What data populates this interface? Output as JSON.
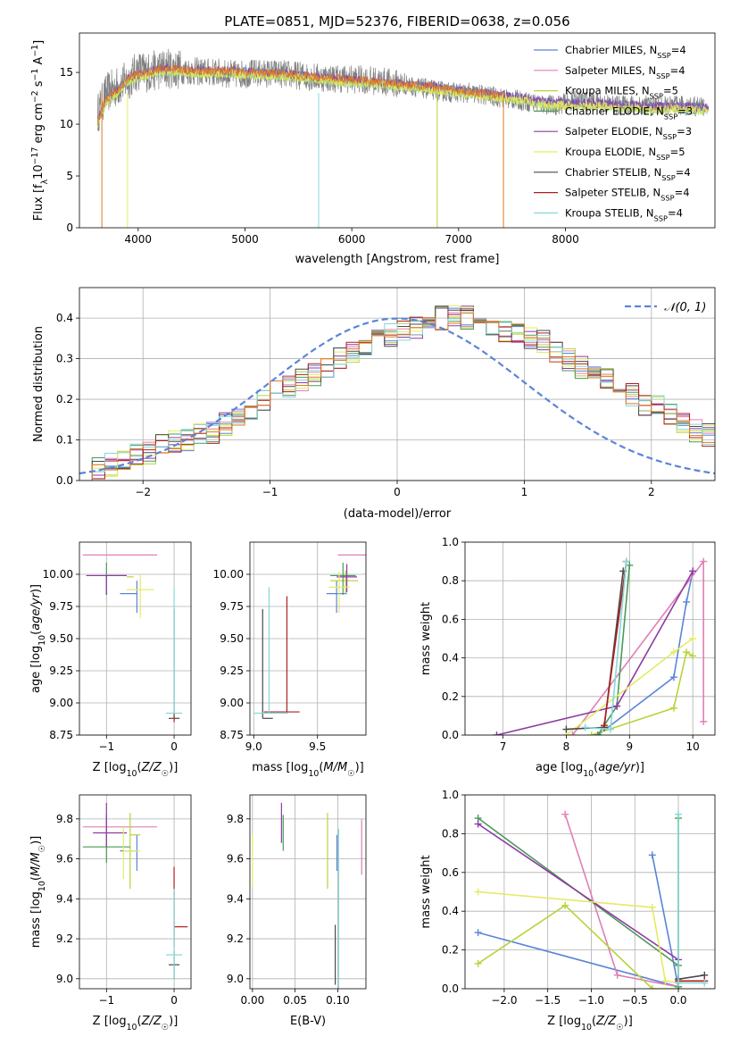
{
  "figure": {
    "title": "PLATE=0851, MJD=52376, FIBERID=0638, z=0.056"
  },
  "colors": {
    "Chabrier MILES": "#5b84d8",
    "Salpeter MILES": "#e07fb7",
    "Kroupa MILES": "#b5d43a",
    "Chabrier ELODIE": "#4a9a58",
    "Salpeter ELODIE": "#8e3aa3",
    "Kroupa ELODIE": "#e4ea66",
    "Chabrier STELIB": "#4a4a4a",
    "Salpeter STELIB": "#b01e1e",
    "Kroupa STELIB": "#86d8d8",
    "orange": "#de7a26",
    "data": "#808080"
  },
  "chart_data": [
    {
      "panel": "spectrum",
      "type": "line",
      "xlabel": "wavelength [Angstrom, rest frame]",
      "ylabel": "Flux [fλ10⁻¹⁷ erg cm⁻² s⁻¹ A⁻¹]",
      "xlim": [
        3450,
        9400
      ],
      "ylim": [
        0,
        18.8
      ],
      "xticks": [
        4000,
        5000,
        6000,
        7000,
        8000
      ],
      "yticks": [
        0,
        5,
        10,
        15
      ],
      "legend_position": "top-right",
      "legend": [
        "Chabrier MILES, N_SSP=4",
        "Salpeter MILES, N_SSP=4",
        "Kroupa MILES, N_SSP=5",
        "Chabrier ELODIE, N_SSP=3",
        "Salpeter ELODIE, N_SSP=3",
        "Kroupa ELODIE, N_SSP=5",
        "Chabrier STELIB, N_SSP=4",
        "Salpeter STELIB, N_SSP=4",
        "Kroupa STELIB, N_SSP=4"
      ],
      "data_outline": {
        "x": [
          3620,
          3700,
          3800,
          3900,
          4000,
          4100,
          4200,
          4300,
          4500,
          4700,
          4900,
          5100,
          5300,
          5500,
          5700,
          5900,
          6100,
          6300,
          6500,
          6700,
          6900,
          7100,
          7300,
          7500,
          7700,
          7900,
          8100,
          8300,
          8500,
          8700,
          8900,
          9100,
          9300
        ],
        "y": [
          11.0,
          13.0,
          13.6,
          14.2,
          15.2,
          15.0,
          15.3,
          15.4,
          15.1,
          15.0,
          14.8,
          14.9,
          14.9,
          14.7,
          14.5,
          14.4,
          14.3,
          14.1,
          13.8,
          13.4,
          13.1,
          13.0,
          12.7,
          12.4,
          12.1,
          11.8,
          12.3,
          12.1,
          11.8,
          11.9,
          11.7,
          11.8,
          11.7
        ]
      },
      "models_continuum": {
        "x": [
          3620,
          3700,
          3800,
          3900,
          4000,
          4100,
          4200,
          4400,
          4600,
          4800,
          5000,
          5200,
          5400,
          5600,
          5800,
          6000,
          6200,
          6400,
          6600,
          6800,
          7000,
          7200,
          7400,
          7600,
          7800,
          8000,
          8200,
          8400,
          8600,
          8800,
          9000,
          9200,
          9340
        ],
        "y": [
          10.2,
          12.3,
          13.0,
          14.2,
          14.6,
          14.9,
          15.2,
          15.1,
          15.0,
          15.0,
          14.9,
          14.8,
          14.7,
          14.5,
          14.3,
          14.1,
          14.0,
          13.8,
          13.6,
          13.4,
          13.1,
          12.9,
          12.6,
          12.4,
          12.0,
          11.9,
          11.9,
          11.8,
          11.7,
          11.5,
          11.6,
          11.5,
          11.4
        ]
      }
    },
    {
      "panel": "residuals",
      "type": "line",
      "xlabel": "(data-model)/error",
      "ylabel": "Normed distribution",
      "xlim": [
        -2.5,
        2.5
      ],
      "ylim": [
        0,
        0.475
      ],
      "xticks": [
        -2,
        -1,
        0,
        1,
        2
      ],
      "yticks": [
        0.0,
        0.1,
        0.2,
        0.3,
        0.4
      ],
      "legend": [
        "𝒩(0, 1)"
      ],
      "legend_position": "top-right",
      "reference_curve": "gaussian mean 0 sigma 1",
      "bin_width": 0.1,
      "bin_start": -2.5,
      "histogram_approx": [
        0.025,
        0.03,
        0.04,
        0.05,
        0.06,
        0.07,
        0.085,
        0.1,
        0.1,
        0.11,
        0.12,
        0.14,
        0.16,
        0.18,
        0.2,
        0.22,
        0.23,
        0.25,
        0.26,
        0.28,
        0.3,
        0.32,
        0.33,
        0.35,
        0.36,
        0.37,
        0.38,
        0.39,
        0.4,
        0.41,
        0.4,
        0.39,
        0.38,
        0.37,
        0.36,
        0.35,
        0.34,
        0.32,
        0.3,
        0.28,
        0.27,
        0.25,
        0.23,
        0.21,
        0.19,
        0.18,
        0.16,
        0.14,
        0.12,
        0.11
      ]
    },
    {
      "panel": "age_vs_Z",
      "type": "scatter",
      "xlabel": "Z [log10(Z/Z☉)]",
      "ylabel": "age  [log10(age/yr)]",
      "xlim": [
        -1.4,
        0.25
      ],
      "ylim": [
        8.75,
        10.25
      ],
      "xticks": [
        -1,
        0
      ],
      "yticks": [
        8.75,
        9.0,
        9.25,
        9.5,
        9.75,
        10.0
      ],
      "points": [
        {
          "model": "Chabrier MILES",
          "x": -0.55,
          "y": 9.85,
          "xerr": [
            0.25,
            0.0
          ],
          "yerr": [
            0.15,
            0.1
          ]
        },
        {
          "model": "Salpeter MILES",
          "x": -0.8,
          "y": 10.15,
          "xerr": [
            0.55,
            0.55
          ],
          "yerr": [
            0.0,
            0.0
          ]
        },
        {
          "model": "Kroupa MILES",
          "x": -0.7,
          "y": 9.98,
          "xerr": [
            0.0,
            0.1
          ],
          "yerr": [
            0.0,
            0.0
          ]
        },
        {
          "model": "Chabrier ELODIE",
          "x": -1.0,
          "y": 9.99,
          "xerr": [
            0.0,
            0.3
          ],
          "yerr": [
            0.15,
            0.1
          ]
        },
        {
          "model": "Salpeter ELODIE",
          "x": -1.0,
          "y": 9.99,
          "xerr": [
            0.3,
            0.3
          ],
          "yerr": [
            0.15,
            0.0
          ]
        },
        {
          "model": "Kroupa ELODIE",
          "x": -0.5,
          "y": 9.88,
          "xerr": [
            0.2,
            0.2
          ],
          "yerr": [
            0.22,
            0.12
          ]
        },
        {
          "model": "Chabrier STELIB",
          "x": 0.0,
          "y": 8.88,
          "xerr": [
            0.08,
            0.08
          ],
          "yerr": [
            0.0,
            0.85
          ]
        },
        {
          "model": "Salpeter STELIB",
          "x": 0.0,
          "y": 8.9,
          "xerr": [
            0.0,
            0.0
          ],
          "yerr": [
            0.05,
            0.0
          ]
        },
        {
          "model": "Kroupa STELIB",
          "x": 0.0,
          "y": 8.92,
          "xerr": [
            0.12,
            0.12
          ],
          "yerr": [
            0.0,
            0.98
          ]
        }
      ]
    },
    {
      "panel": "age_vs_mass",
      "type": "scatter",
      "xlabel": "mass [log10(M/M☉)]",
      "ylabel": "",
      "xlim": [
        8.97,
        9.88
      ],
      "ylim": [
        8.75,
        10.25
      ],
      "xticks": [
        9.0,
        9.5
      ],
      "yticks": [
        8.75,
        9.0,
        9.25,
        9.5,
        9.75,
        10.0
      ],
      "points": [
        {
          "model": "Chabrier MILES",
          "x": 9.65,
          "y": 9.85,
          "xerr": [
            0.08,
            0.08
          ],
          "yerr": [
            0.15,
            0.1
          ]
        },
        {
          "model": "Salpeter MILES",
          "x": 9.78,
          "y": 10.15,
          "xerr": [
            0.12,
            0.12
          ],
          "yerr": [
            0.0,
            0.0
          ]
        },
        {
          "model": "Kroupa MILES",
          "x": 9.72,
          "y": 9.95,
          "xerr": [
            0.12,
            0.1
          ],
          "yerr": [
            0.1,
            0.08
          ]
        },
        {
          "model": "Chabrier ELODIE",
          "x": 9.7,
          "y": 9.99,
          "xerr": [
            0.1,
            0.1
          ],
          "yerr": [
            0.15,
            0.1
          ]
        },
        {
          "model": "Salpeter ELODIE",
          "x": 9.73,
          "y": 9.98,
          "xerr": [
            0.08,
            0.08
          ],
          "yerr": [
            0.12,
            0.1
          ]
        },
        {
          "model": "Kroupa ELODIE",
          "x": 9.67,
          "y": 9.9,
          "xerr": [
            0.08,
            0.08
          ],
          "yerr": [
            0.2,
            0.12
          ]
        },
        {
          "model": "Chabrier STELIB",
          "x": 9.07,
          "y": 8.88,
          "xerr": [
            0.0,
            0.08
          ],
          "yerr": [
            0.0,
            0.85
          ]
        },
        {
          "model": "Salpeter STELIB",
          "x": 9.26,
          "y": 8.93,
          "xerr": [
            0.18,
            0.1
          ],
          "yerr": [
            0.0,
            0.9
          ]
        },
        {
          "model": "Kroupa STELIB",
          "x": 9.12,
          "y": 8.92,
          "xerr": [
            0.12,
            0.15
          ],
          "yerr": [
            0.0,
            0.98
          ]
        }
      ]
    },
    {
      "panel": "weight_vs_age",
      "type": "line",
      "xlabel": "age  [log10(age/yr)]",
      "ylabel": "mass weight",
      "xlim": [
        6.4,
        10.35
      ],
      "ylim": [
        0,
        1.0
      ],
      "xticks": [
        7,
        8,
        9,
        10
      ],
      "yticks": [
        0.0,
        0.2,
        0.4,
        0.6,
        0.8,
        1.0
      ],
      "series": [
        {
          "model": "Chabrier MILES",
          "x": [
            8.5,
            9.7,
            9.9,
            10.0
          ],
          "y": [
            0.0,
            0.3,
            0.69,
            0.85
          ]
        },
        {
          "model": "Salpeter MILES",
          "x": [
            8.1,
            10.17,
            10.17
          ],
          "y": [
            0.0,
            0.9,
            0.07
          ]
        },
        {
          "model": "Kroupa MILES",
          "x": [
            8.4,
            9.7,
            9.9,
            10.0
          ],
          "y": [
            0.0,
            0.14,
            0.43,
            0.41
          ]
        },
        {
          "model": "Chabrier ELODIE",
          "x": [
            8.5,
            8.8,
            9.0
          ],
          "y": [
            0.0,
            0.15,
            0.88
          ]
        },
        {
          "model": "Salpeter ELODIE",
          "x": [
            6.9,
            8.8,
            10.0
          ],
          "y": [
            0.0,
            0.15,
            0.85
          ]
        },
        {
          "model": "Kroupa ELODIE",
          "x": [
            8.0,
            9.7,
            10.0
          ],
          "y": [
            0.0,
            0.43,
            0.5
          ]
        },
        {
          "model": "Chabrier STELIB",
          "x": [
            8.0,
            8.6,
            8.9
          ],
          "y": [
            0.03,
            0.04,
            0.85
          ]
        },
        {
          "model": "Salpeter STELIB",
          "x": [
            8.6,
            8.95
          ],
          "y": [
            0.05,
            0.9
          ]
        },
        {
          "model": "Kroupa STELIB",
          "x": [
            8.3,
            8.7,
            8.95
          ],
          "y": [
            0.04,
            0.03,
            0.9
          ]
        }
      ]
    },
    {
      "panel": "mass_vs_Z",
      "type": "scatter",
      "xlabel": "Z [log10(Z/Z☉)]",
      "ylabel": "mass [log10(M/M☉)]",
      "xlim": [
        -1.4,
        0.25
      ],
      "ylim": [
        8.95,
        9.92
      ],
      "xticks": [
        -1,
        0
      ],
      "yticks": [
        9.0,
        9.2,
        9.4,
        9.6,
        9.8
      ],
      "points": [
        {
          "model": "Chabrier MILES",
          "x": -0.55,
          "y": 9.64,
          "xerr": [
            0.25,
            0.0
          ],
          "yerr": [
            0.1,
            0.08
          ]
        },
        {
          "model": "Salpeter MILES",
          "x": -0.8,
          "y": 9.76,
          "xerr": [
            0.55,
            0.55
          ],
          "yerr": [
            0.0,
            0.0
          ]
        },
        {
          "model": "Kroupa MILES",
          "x": -0.65,
          "y": 9.72,
          "xerr": [
            0.0,
            0.15
          ],
          "yerr": [
            0.27,
            0.11
          ]
        },
        {
          "model": "Chabrier ELODIE",
          "x": -1.0,
          "y": 9.66,
          "xerr": [
            0.35,
            0.35
          ],
          "yerr": [
            0.08,
            0.16
          ]
        },
        {
          "model": "Salpeter ELODIE",
          "x": -1.0,
          "y": 9.73,
          "xerr": [
            0.2,
            0.3
          ],
          "yerr": [
            0.07,
            0.15
          ]
        },
        {
          "model": "Kroupa ELODIE",
          "x": -0.75,
          "y": 9.64,
          "xerr": [
            0.0,
            0.25
          ],
          "yerr": [
            0.14,
            0.12
          ]
        },
        {
          "model": "Chabrier STELIB",
          "x": 0.0,
          "y": 9.07,
          "xerr": [
            0.08,
            0.08
          ],
          "yerr": [
            0.07,
            0.07
          ]
        },
        {
          "model": "Salpeter STELIB",
          "x": 0.0,
          "y": 9.26,
          "xerr": [
            0.0,
            0.2
          ],
          "yerr": [
            0.1,
            0.3
          ]
        },
        {
          "model": "Kroupa STELIB",
          "x": 0.0,
          "y": 9.12,
          "xerr": [
            0.12,
            0.12
          ],
          "yerr": [
            0.12,
            0.33
          ]
        }
      ]
    },
    {
      "panel": "mass_vs_EBV",
      "type": "scatter",
      "xlabel": "E(B-V)",
      "ylabel": "",
      "xlim": [
        -0.003,
        0.133
      ],
      "ylim": [
        8.95,
        9.92
      ],
      "xticks": [
        0.0,
        0.05,
        0.1
      ],
      "xticklabels": [
        "0.00",
        "0.05",
        "0.10"
      ],
      "yticks": [
        9.0,
        9.2,
        9.4,
        9.6,
        9.8
      ],
      "points": [
        {
          "model": "Kroupa ELODIE",
          "x": 0.0,
          "y": 9.6,
          "yerr": [
            0.14,
            0.12
          ]
        },
        {
          "model": "Salpeter ELODIE",
          "x": 0.034,
          "y": 9.78,
          "yerr": [
            0.1,
            0.1
          ]
        },
        {
          "model": "Chabrier ELODIE",
          "x": 0.036,
          "y": 9.72,
          "yerr": [
            0.08,
            0.1
          ]
        },
        {
          "model": "Kroupa MILES",
          "x": 0.088,
          "y": 9.65,
          "yerr": [
            0.2,
            0.18
          ]
        },
        {
          "model": "Chabrier STELIB",
          "x": 0.097,
          "y": 9.12,
          "yerr": [
            0.15,
            0.15
          ]
        },
        {
          "model": "Chabrier MILES",
          "x": 0.099,
          "y": 9.64,
          "yerr": [
            0.1,
            0.08
          ]
        },
        {
          "model": "Kroupa STELIB",
          "x": 0.101,
          "y": 9.35,
          "yerr": [
            0.4,
            0.4
          ]
        },
        {
          "model": "Salpeter MILES",
          "x": 0.128,
          "y": 9.66,
          "yerr": [
            0.14,
            0.14
          ]
        }
      ]
    },
    {
      "panel": "weight_vs_Z",
      "type": "line",
      "xlabel": "Z [log10(Z/Z☉)]",
      "ylabel": "mass weight",
      "xlim": [
        -2.45,
        0.42
      ],
      "ylim": [
        0,
        1.0
      ],
      "xticks": [
        -2.0,
        -1.5,
        -1.0,
        -0.5,
        0.0
      ],
      "yticks": [
        0.0,
        0.2,
        0.4,
        0.6,
        0.8,
        1.0
      ],
      "series": [
        {
          "model": "Chabrier MILES",
          "x": [
            -2.3,
            0.0,
            -0.3,
            0.0
          ],
          "y": [
            0.29,
            0.01,
            0.69,
            0.01
          ]
        },
        {
          "model": "Salpeter MILES",
          "x": [
            -1.3,
            -0.7,
            0.0
          ],
          "y": [
            0.9,
            0.07,
            0.01
          ]
        },
        {
          "model": "Kroupa MILES",
          "x": [
            -2.3,
            -1.3,
            -0.3,
            0.0
          ],
          "y": [
            0.13,
            0.43,
            0.0,
            0.0
          ]
        },
        {
          "model": "Chabrier ELODIE",
          "x": [
            -2.3,
            0.0,
            0.0,
            0.0
          ],
          "y": [
            0.88,
            0.12,
            0.01,
            0.88
          ]
        },
        {
          "model": "Salpeter ELODIE",
          "x": [
            -2.3,
            0.0
          ],
          "y": [
            0.85,
            0.15
          ]
        },
        {
          "model": "Kroupa ELODIE",
          "x": [
            -2.3,
            -0.3,
            -0.15,
            0.0
          ],
          "y": [
            0.5,
            0.42,
            0.04,
            0.03
          ]
        },
        {
          "model": "Chabrier STELIB",
          "x": [
            0.0,
            0.3
          ],
          "y": [
            0.05,
            0.07
          ]
        },
        {
          "model": "Salpeter STELIB",
          "x": [
            0.0,
            0.3
          ],
          "y": [
            0.04,
            0.04
          ]
        },
        {
          "model": "Kroupa STELIB",
          "x": [
            0.0,
            0.0,
            0.3
          ],
          "y": [
            0.9,
            0.03,
            0.03
          ]
        }
      ]
    }
  ]
}
